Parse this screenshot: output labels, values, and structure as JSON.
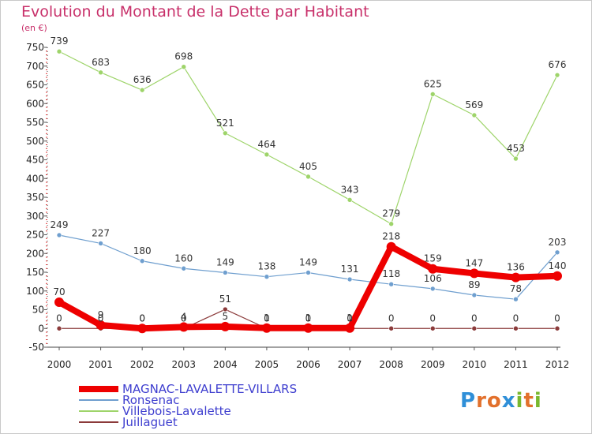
{
  "title": "Evolution du Montant de la Dette par Habitant",
  "subtitle": "(en €)",
  "logo": {
    "text": "Proxiti",
    "colors": [
      "#2f8fd8",
      "#e2702c",
      "#e2702c",
      "#2f8fd8",
      "#79b82f",
      "#e2702c",
      "#79b82f"
    ]
  },
  "chart_data": {
    "type": "line",
    "title": "Evolution du Montant de la Dette par Habitant",
    "ylabel": "(en €)",
    "xlabel": "",
    "categories": [
      "2000",
      "2001",
      "2002",
      "2003",
      "2004",
      "2005",
      "2006",
      "2007",
      "2008",
      "2009",
      "2010",
      "2011",
      "2012"
    ],
    "ylim": [
      -50,
      750
    ],
    "yticks": [
      -50,
      0,
      50,
      100,
      150,
      200,
      250,
      300,
      350,
      400,
      450,
      500,
      550,
      600,
      650,
      700,
      750
    ],
    "grid": false,
    "legend_position": "bottom-left",
    "series": [
      {
        "name": "MAGNAC-LAVALETTE-VILLARS",
        "color": "#ee0000",
        "values": [
          70,
          9,
          0,
          4,
          5,
          1,
          1,
          1,
          218,
          159,
          147,
          136,
          140
        ],
        "labels": [
          "70",
          "9",
          "0",
          "4",
          "5",
          "1",
          "1",
          "1",
          "218",
          "159",
          "147",
          "136",
          "140"
        ]
      },
      {
        "name": "Ronsenac",
        "color": "#6f9fcf",
        "values": [
          249,
          227,
          180,
          160,
          149,
          138,
          149,
          131,
          118,
          106,
          89,
          78,
          203
        ],
        "labels": [
          "249",
          "227",
          "180",
          "160",
          "149",
          "138",
          "149",
          "131",
          "118",
          "106",
          "89",
          "78",
          "203"
        ]
      },
      {
        "name": "Villebois-Lavalette",
        "color": "#9ed46a",
        "values": [
          739,
          683,
          636,
          698,
          521,
          464,
          405,
          343,
          279,
          625,
          569,
          453,
          676
        ],
        "labels": [
          "739",
          "683",
          "636",
          "698",
          "521",
          "464",
          "405",
          "343",
          "279",
          "625",
          "569",
          "453",
          "676"
        ]
      },
      {
        "name": "Juillaguet",
        "color": "#8b3a3a",
        "values": [
          0,
          0,
          0,
          0,
          51,
          0,
          0,
          0,
          0,
          0,
          0,
          0,
          0
        ],
        "labels": [
          "0",
          "0",
          "0",
          "0",
          "51",
          "0",
          "0",
          "0",
          "0",
          "0",
          "0",
          "0",
          "0"
        ]
      }
    ]
  }
}
